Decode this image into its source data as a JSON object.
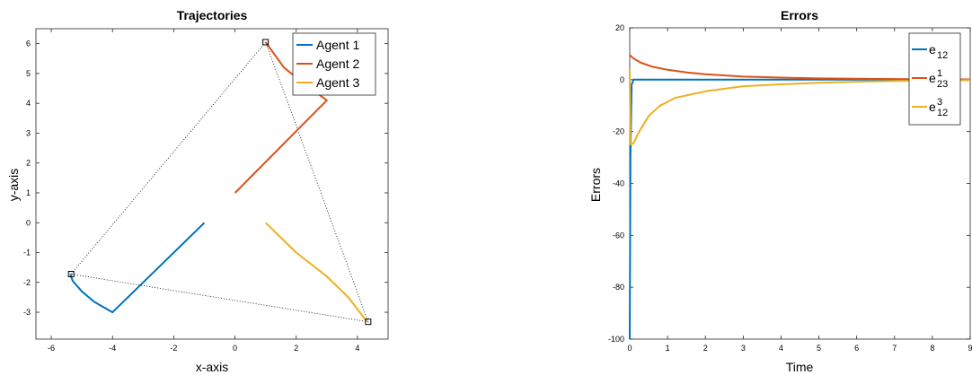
{
  "chart_data": [
    {
      "type": "line",
      "title": "Trajectories",
      "xlabel": "x-axis",
      "ylabel": "y-axis",
      "xlim": [
        -6.5,
        5
      ],
      "ylim": [
        -3.9,
        6.5
      ],
      "xticks": [
        -6,
        -4,
        -2,
        0,
        2,
        4
      ],
      "yticks": [
        -3,
        -2,
        -1,
        0,
        1,
        2,
        3,
        4,
        5,
        6
      ],
      "grid": false,
      "legend_position": "top-right",
      "series": [
        {
          "name": "Agent 1",
          "color": "#0072BD",
          "x": [
            -1,
            -4,
            -4.6,
            -5.0,
            -5.3,
            -5.38
          ],
          "y": [
            0,
            -3.0,
            -2.65,
            -2.3,
            -1.95,
            -1.72
          ]
        },
        {
          "name": "Agent 2",
          "color": "#D95319",
          "x": [
            0,
            3.0,
            2.2,
            1.6,
            1.0
          ],
          "y": [
            1.0,
            4.1,
            4.7,
            5.2,
            6.05
          ]
        },
        {
          "name": "Agent 3",
          "color": "#EDB120",
          "x": [
            1.0,
            2.0,
            3.0,
            3.7,
            4.3
          ],
          "y": [
            0,
            -1.0,
            -1.8,
            -2.5,
            -3.3
          ]
        }
      ],
      "markers": [
        {
          "x": -5.35,
          "y": -1.72
        },
        {
          "x": 1.0,
          "y": 6.05
        },
        {
          "x": 4.35,
          "y": -3.32
        }
      ],
      "triangle_color": "#000000"
    },
    {
      "type": "line",
      "title": "Errors",
      "xlabel": "Time",
      "ylabel": "Errors",
      "xlim": [
        0,
        9
      ],
      "ylim": [
        -100,
        20
      ],
      "xticks": [
        0,
        1,
        2,
        3,
        4,
        5,
        6,
        7,
        8,
        9
      ],
      "yticks": [
        20,
        0,
        -20,
        -40,
        -60,
        -80,
        -100
      ],
      "grid": false,
      "legend_position": "top-right",
      "series": [
        {
          "name": "e12",
          "legend_base": "e",
          "legend_sub": "12",
          "legend_sup": "",
          "color": "#0072BD",
          "x": [
            0,
            0.02,
            0.05,
            0.1,
            0.3,
            1,
            3,
            9
          ],
          "y": [
            -100,
            -30,
            -2,
            0,
            0,
            0,
            0,
            0
          ]
        },
        {
          "name": "e123",
          "legend_base": "e",
          "legend_sub": "23",
          "legend_sup": "1",
          "color": "#D95319",
          "x": [
            0,
            0.1,
            0.3,
            0.6,
            1,
            1.5,
            2,
            3,
            4,
            5,
            6,
            7,
            8,
            9
          ],
          "y": [
            9.5,
            8.2,
            6.5,
            5.0,
            3.8,
            2.8,
            2.1,
            1.2,
            0.8,
            0.5,
            0.35,
            0.25,
            0.15,
            0.1
          ]
        },
        {
          "name": "e312",
          "legend_base": "e",
          "legend_sub": "12",
          "legend_sup": "3",
          "color": "#EDB120",
          "x": [
            0,
            0.02,
            0.1,
            0.25,
            0.5,
            0.8,
            1.2,
            2,
            3,
            4,
            5,
            6,
            7,
            8,
            9
          ],
          "y": [
            4,
            -25,
            -24.5,
            -20,
            -14,
            -10,
            -7,
            -4.5,
            -2.5,
            -1.8,
            -1.2,
            -0.8,
            -0.5,
            -0.3,
            -0.2
          ]
        }
      ]
    }
  ]
}
